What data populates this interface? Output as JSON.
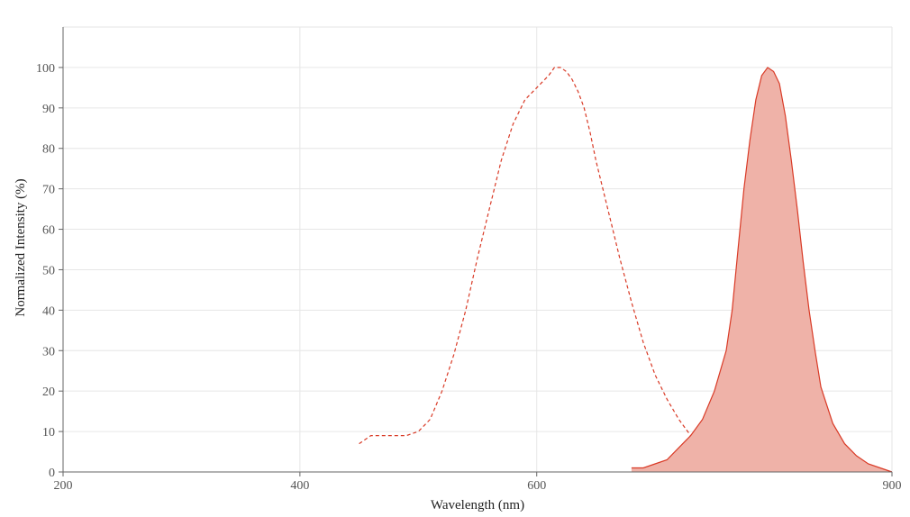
{
  "chart_data": {
    "type": "area",
    "title": "",
    "xlabel": "Wavelength (nm)",
    "ylabel": "Normalized Intensity (%)",
    "xlim": [
      200,
      900
    ],
    "ylim": [
      0,
      110
    ],
    "xticks": [
      200,
      400,
      600,
      900
    ],
    "yticks": [
      0,
      10,
      20,
      30,
      40,
      50,
      60,
      70,
      80,
      90,
      100
    ],
    "grid": true,
    "legend": "none",
    "series": [
      {
        "style": "dashed-line",
        "color": "#d93a26",
        "x": [
          450,
          455,
          460,
          470,
          480,
          490,
          500,
          510,
          520,
          530,
          540,
          550,
          560,
          570,
          580,
          590,
          600,
          610,
          615,
          620,
          625,
          630,
          635,
          640,
          645,
          650,
          660,
          670,
          680,
          690,
          700,
          710,
          720,
          730,
          740,
          750,
          760,
          770,
          780,
          790,
          800
        ],
        "y": [
          7,
          8,
          9,
          9,
          9,
          9,
          10,
          13,
          20,
          29,
          40,
          53,
          65,
          77,
          86,
          92,
          95,
          98,
          100,
          100,
          99,
          97,
          94,
          90,
          84,
          77,
          65,
          53,
          42,
          32,
          24,
          18,
          13,
          9,
          6,
          4,
          3,
          2,
          1,
          1,
          1
        ]
      },
      {
        "style": "filled-area",
        "color": "#d93a26",
        "fill": "#efb2a8",
        "x": [
          680,
          690,
          700,
          710,
          720,
          730,
          740,
          750,
          760,
          765,
          770,
          775,
          780,
          785,
          790,
          795,
          800,
          805,
          810,
          815,
          820,
          825,
          830,
          835,
          840,
          850,
          860,
          870,
          880,
          890,
          900
        ],
        "y": [
          1,
          1,
          2,
          3,
          6,
          9,
          13,
          20,
          30,
          40,
          55,
          70,
          82,
          92,
          98,
          100,
          99,
          96,
          88,
          77,
          65,
          52,
          40,
          30,
          21,
          12,
          7,
          4,
          2,
          1,
          0
        ]
      }
    ]
  }
}
